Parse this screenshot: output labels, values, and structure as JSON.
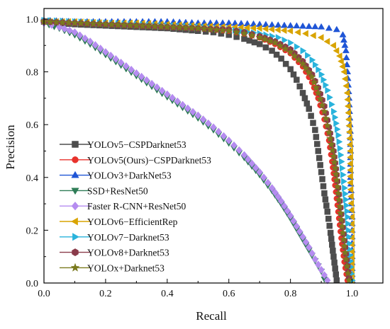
{
  "chart_data": {
    "type": "scatter",
    "xlabel": "Recall",
    "ylabel": "Precision",
    "xlim": [
      0,
      1.1
    ],
    "ylim": [
      0,
      1.04
    ],
    "xticks": [
      "0.0",
      "0.2",
      "0.4",
      "0.6",
      "0.8",
      "1.0"
    ],
    "yticks": [
      "0.0",
      "0.2",
      "0.4",
      "0.6",
      "0.8",
      "1.0"
    ],
    "grid": false,
    "legend_position": "center-left",
    "series": [
      {
        "name": "YOLOv5−CSPDarknet53",
        "color": "#4d4d4d",
        "marker": "square",
        "points": [
          [
            0.0,
            0.99
          ],
          [
            0.1,
            0.98
          ],
          [
            0.2,
            0.975
          ],
          [
            0.3,
            0.97
          ],
          [
            0.4,
            0.965
          ],
          [
            0.5,
            0.955
          ],
          [
            0.55,
            0.95
          ],
          [
            0.6,
            0.94
          ],
          [
            0.65,
            0.925
          ],
          [
            0.7,
            0.905
          ],
          [
            0.74,
            0.88
          ],
          [
            0.77,
            0.85
          ],
          [
            0.8,
            0.81
          ],
          [
            0.82,
            0.77
          ],
          [
            0.84,
            0.72
          ],
          [
            0.86,
            0.66
          ],
          [
            0.88,
            0.58
          ],
          [
            0.89,
            0.5
          ],
          [
            0.9,
            0.42
          ],
          [
            0.91,
            0.34
          ],
          [
            0.92,
            0.27
          ],
          [
            0.93,
            0.19
          ],
          [
            0.94,
            0.1
          ],
          [
            0.95,
            0.01
          ]
        ]
      },
      {
        "name": "YOLOv5(Ours)−CSPDarknet53",
        "color": "#e8322c",
        "marker": "circle",
        "points": [
          [
            0.0,
            0.99
          ],
          [
            0.1,
            0.985
          ],
          [
            0.2,
            0.98
          ],
          [
            0.3,
            0.975
          ],
          [
            0.4,
            0.97
          ],
          [
            0.5,
            0.965
          ],
          [
            0.6,
            0.955
          ],
          [
            0.65,
            0.945
          ],
          [
            0.7,
            0.93
          ],
          [
            0.75,
            0.905
          ],
          [
            0.8,
            0.87
          ],
          [
            0.84,
            0.82
          ],
          [
            0.87,
            0.76
          ],
          [
            0.89,
            0.7
          ],
          [
            0.91,
            0.62
          ],
          [
            0.925,
            0.54
          ],
          [
            0.935,
            0.46
          ],
          [
            0.945,
            0.37
          ],
          [
            0.955,
            0.27
          ],
          [
            0.965,
            0.17
          ],
          [
            0.975,
            0.08
          ],
          [
            0.985,
            0.01
          ]
        ]
      },
      {
        "name": "YOLOv3+DarkNet53",
        "color": "#1f55d6",
        "marker": "triangle-up",
        "points": [
          [
            0.0,
            0.995
          ],
          [
            0.1,
            0.99
          ],
          [
            0.2,
            0.99
          ],
          [
            0.3,
            0.99
          ],
          [
            0.4,
            0.99
          ],
          [
            0.5,
            0.985
          ],
          [
            0.6,
            0.985
          ],
          [
            0.7,
            0.98
          ],
          [
            0.8,
            0.975
          ],
          [
            0.9,
            0.97
          ],
          [
            0.95,
            0.96
          ],
          [
            0.97,
            0.94
          ],
          [
            0.98,
            0.88
          ],
          [
            0.985,
            0.8
          ],
          [
            0.99,
            0.7
          ],
          [
            0.995,
            0.55
          ],
          [
            0.995,
            0.4
          ],
          [
            1.0,
            0.25
          ],
          [
            1.0,
            0.1
          ],
          [
            1.0,
            0.01
          ]
        ]
      },
      {
        "name": "SSD+ResNet50",
        "color": "#2f7d57",
        "marker": "triangle-down",
        "points": [
          [
            0.0,
            0.985
          ],
          [
            0.05,
            0.965
          ],
          [
            0.1,
            0.94
          ],
          [
            0.15,
            0.905
          ],
          [
            0.2,
            0.865
          ],
          [
            0.25,
            0.825
          ],
          [
            0.3,
            0.785
          ],
          [
            0.35,
            0.745
          ],
          [
            0.4,
            0.705
          ],
          [
            0.45,
            0.665
          ],
          [
            0.5,
            0.625
          ],
          [
            0.55,
            0.58
          ],
          [
            0.6,
            0.53
          ],
          [
            0.65,
            0.475
          ],
          [
            0.7,
            0.41
          ],
          [
            0.74,
            0.35
          ],
          [
            0.77,
            0.3
          ],
          [
            0.8,
            0.245
          ],
          [
            0.83,
            0.185
          ],
          [
            0.86,
            0.125
          ],
          [
            0.88,
            0.085
          ],
          [
            0.9,
            0.045
          ],
          [
            0.91,
            0.015
          ]
        ]
      },
      {
        "name": "Faster R-CNN+ResNet50",
        "color": "#b58cf0",
        "marker": "diamond",
        "points": [
          [
            0.0,
            0.985
          ],
          [
            0.05,
            0.97
          ],
          [
            0.1,
            0.95
          ],
          [
            0.15,
            0.915
          ],
          [
            0.2,
            0.875
          ],
          [
            0.25,
            0.835
          ],
          [
            0.3,
            0.795
          ],
          [
            0.35,
            0.755
          ],
          [
            0.4,
            0.715
          ],
          [
            0.45,
            0.675
          ],
          [
            0.5,
            0.635
          ],
          [
            0.55,
            0.59
          ],
          [
            0.6,
            0.54
          ],
          [
            0.65,
            0.485
          ],
          [
            0.7,
            0.42
          ],
          [
            0.74,
            0.36
          ],
          [
            0.77,
            0.31
          ],
          [
            0.8,
            0.255
          ],
          [
            0.83,
            0.195
          ],
          [
            0.86,
            0.135
          ],
          [
            0.88,
            0.09
          ],
          [
            0.9,
            0.05
          ],
          [
            0.92,
            0.01
          ]
        ]
      },
      {
        "name": "YOLOv6−EfficientRep",
        "color": "#d9a400",
        "marker": "triangle-left",
        "points": [
          [
            0.0,
            0.99
          ],
          [
            0.1,
            0.99
          ],
          [
            0.2,
            0.985
          ],
          [
            0.3,
            0.985
          ],
          [
            0.4,
            0.98
          ],
          [
            0.5,
            0.975
          ],
          [
            0.6,
            0.97
          ],
          [
            0.7,
            0.965
          ],
          [
            0.8,
            0.955
          ],
          [
            0.85,
            0.945
          ],
          [
            0.9,
            0.93
          ],
          [
            0.94,
            0.9
          ],
          [
            0.96,
            0.86
          ],
          [
            0.975,
            0.8
          ],
          [
            0.985,
            0.72
          ],
          [
            0.99,
            0.62
          ],
          [
            0.995,
            0.5
          ],
          [
            0.995,
            0.38
          ],
          [
            1.0,
            0.25
          ],
          [
            1.0,
            0.12
          ],
          [
            1.0,
            0.01
          ]
        ]
      },
      {
        "name": "YOLOv7−Darknet53",
        "color": "#29b3dc",
        "marker": "triangle-right",
        "points": [
          [
            0.0,
            0.995
          ],
          [
            0.1,
            0.99
          ],
          [
            0.2,
            0.985
          ],
          [
            0.3,
            0.98
          ],
          [
            0.4,
            0.975
          ],
          [
            0.5,
            0.97
          ],
          [
            0.6,
            0.96
          ],
          [
            0.7,
            0.945
          ],
          [
            0.76,
            0.93
          ],
          [
            0.8,
            0.91
          ],
          [
            0.84,
            0.88
          ],
          [
            0.87,
            0.845
          ],
          [
            0.9,
            0.79
          ],
          [
            0.92,
            0.73
          ],
          [
            0.94,
            0.65
          ],
          [
            0.955,
            0.56
          ],
          [
            0.965,
            0.46
          ],
          [
            0.975,
            0.36
          ],
          [
            0.985,
            0.25
          ],
          [
            0.99,
            0.15
          ],
          [
            0.995,
            0.06
          ],
          [
            1.0,
            0.01
          ]
        ]
      },
      {
        "name": "YOLOv8+Darknet53",
        "color": "#8a3b4a",
        "marker": "hexagon",
        "points": [
          [
            0.0,
            0.99
          ],
          [
            0.1,
            0.985
          ],
          [
            0.2,
            0.98
          ],
          [
            0.3,
            0.975
          ],
          [
            0.4,
            0.97
          ],
          [
            0.5,
            0.965
          ],
          [
            0.6,
            0.96
          ],
          [
            0.65,
            0.95
          ],
          [
            0.7,
            0.935
          ],
          [
            0.75,
            0.915
          ],
          [
            0.8,
            0.885
          ],
          [
            0.84,
            0.84
          ],
          [
            0.87,
            0.79
          ],
          [
            0.89,
            0.74
          ],
          [
            0.91,
            0.67
          ],
          [
            0.925,
            0.59
          ],
          [
            0.94,
            0.5
          ],
          [
            0.95,
            0.41
          ],
          [
            0.96,
            0.31
          ],
          [
            0.97,
            0.21
          ],
          [
            0.98,
            0.11
          ],
          [
            0.99,
            0.02
          ]
        ]
      },
      {
        "name": "YOLOx+Darknet53",
        "color": "#7a7a1e",
        "marker": "star",
        "points": [
          [
            0.0,
            0.99
          ],
          [
            0.1,
            0.985
          ],
          [
            0.2,
            0.98
          ],
          [
            0.3,
            0.975
          ],
          [
            0.4,
            0.97
          ],
          [
            0.5,
            0.965
          ],
          [
            0.6,
            0.955
          ],
          [
            0.65,
            0.945
          ],
          [
            0.7,
            0.93
          ],
          [
            0.75,
            0.91
          ],
          [
            0.8,
            0.875
          ],
          [
            0.84,
            0.83
          ],
          [
            0.87,
            0.78
          ],
          [
            0.89,
            0.72
          ],
          [
            0.91,
            0.65
          ],
          [
            0.925,
            0.57
          ],
          [
            0.94,
            0.48
          ],
          [
            0.95,
            0.39
          ],
          [
            0.96,
            0.29
          ],
          [
            0.97,
            0.19
          ],
          [
            0.98,
            0.09
          ],
          [
            0.99,
            0.01
          ]
        ]
      }
    ]
  }
}
